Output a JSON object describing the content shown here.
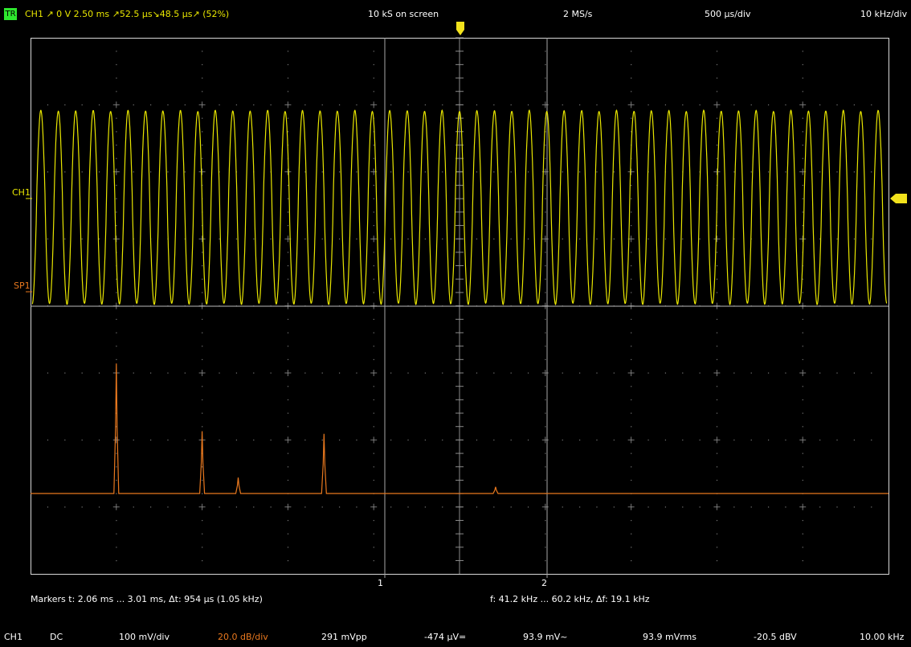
{
  "top_bar": {
    "tr_badge": "TR",
    "trigger_info": "CH1  ↗  0 V  2.50 ms  ↗52.5 µs↘48.5 µs↗ (52%)",
    "samples_on_screen": "10 kS on screen",
    "sample_rate": "2 MS/s",
    "time_per_div": "500 µs/div",
    "freq_per_div": "10 kHz/div"
  },
  "traces": {
    "ch1_label": "CH1",
    "sp1_label": "SP1",
    "ch1_color": "#e8e600",
    "sp1_color": "#e8781e",
    "ch1_cycles_on_screen": 49,
    "spectrum_peaks": [
      {
        "division": 1.0,
        "level": 0.98
      },
      {
        "division": 2.0,
        "level": 0.47
      },
      {
        "division": 2.42,
        "level": 0.12
      },
      {
        "division": 3.42,
        "level": 0.45
      },
      {
        "division": 5.42,
        "level": 0.05
      }
    ]
  },
  "cursors": {
    "marker1_label": "1",
    "marker2_label": "2"
  },
  "markers_line": {
    "time_text": "Markers   t: 2.06 ms ... 3.01 ms,  Δt: 954 µs (1.05 kHz)",
    "freq_text": "f: 41.2 kHz ... 60.2 kHz,  Δf: 19.1 kHz"
  },
  "status": {
    "channel": "CH1",
    "coupling": "DC",
    "volts_per_div": "100 mV/div",
    "db_per_div": "20.0 dB/div",
    "vpp": "291 mVpp",
    "dc_offset": "-474 µV=",
    "ac_rms": "93.9 mV~",
    "vrms": "93.9 mVrms",
    "dbv": "-20.5 dBV",
    "frequency": "10.00 kHz"
  }
}
